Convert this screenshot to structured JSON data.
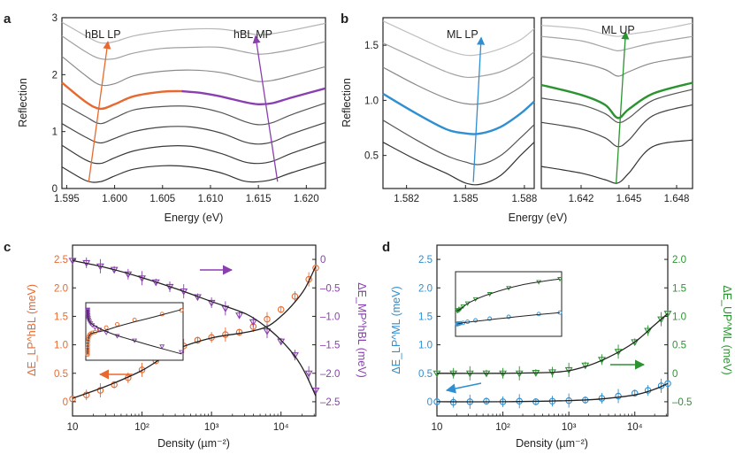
{
  "colors": {
    "orange": "#e8692f",
    "purple": "#8a3fb0",
    "blue": "#2f8fd0",
    "green": "#2b9330",
    "gray": "#9a9a9a",
    "dark": "#333333"
  },
  "panels": {
    "a": "a",
    "b": "b",
    "c": "c",
    "d": "d"
  },
  "chart_data": [
    {
      "panel": "a",
      "type": "line",
      "title": "",
      "xlabel": "Energy (eV)",
      "ylabel": "Reflection",
      "xlim": [
        1.5945,
        1.622
      ],
      "ylim": [
        0,
        3
      ],
      "xticks": [
        1.595,
        1.6,
        1.605,
        1.61,
        1.615,
        1.62
      ],
      "xtick_labels": [
        "1.595",
        "1.600",
        "1.605",
        "1.610",
        "1.615",
        "1.620"
      ],
      "yticks": [
        0,
        1,
        2,
        3
      ],
      "ytick_labels": [
        "0",
        "1",
        "2",
        "3"
      ],
      "annotations": [
        "hBL LP",
        "hBL MP"
      ],
      "series": [
        {
          "name": "trace 1",
          "x": [
            1.5945,
            1.597,
            1.5985,
            1.6,
            1.602,
            1.605,
            1.608,
            1.611,
            1.6135,
            1.615,
            1.6165,
            1.6185,
            1.622
          ],
          "values": [
            0.38,
            0.14,
            0.12,
            0.22,
            0.34,
            0.4,
            0.38,
            0.28,
            0.13,
            0.12,
            0.16,
            0.28,
            0.46
          ]
        },
        {
          "name": "trace 2",
          "x": [
            1.5945,
            1.597,
            1.5985,
            1.6,
            1.602,
            1.605,
            1.608,
            1.611,
            1.6135,
            1.615,
            1.6165,
            1.6185,
            1.622
          ],
          "values": [
            0.76,
            0.5,
            0.44,
            0.54,
            0.66,
            0.74,
            0.74,
            0.62,
            0.47,
            0.44,
            0.48,
            0.62,
            0.82
          ]
        },
        {
          "name": "trace 3",
          "x": [
            1.5945,
            1.597,
            1.5985,
            1.6,
            1.602,
            1.605,
            1.608,
            1.611,
            1.6135,
            1.615,
            1.6165,
            1.6185,
            1.622
          ],
          "values": [
            1.14,
            0.9,
            0.8,
            0.88,
            1.0,
            1.08,
            1.08,
            0.98,
            0.82,
            0.78,
            0.82,
            0.96,
            1.16
          ]
        },
        {
          "name": "trace 4",
          "x": [
            1.5945,
            1.597,
            1.5985,
            1.6,
            1.602,
            1.605,
            1.608,
            1.611,
            1.6135,
            1.615,
            1.6165,
            1.6185,
            1.622
          ],
          "values": [
            1.5,
            1.26,
            1.14,
            1.24,
            1.38,
            1.44,
            1.44,
            1.34,
            1.18,
            1.12,
            1.16,
            1.3,
            1.5
          ]
        },
        {
          "name": "trace 5 LP",
          "x": [
            1.5945,
            1.597,
            1.5985,
            1.6,
            1.602,
            1.605,
            1.607
          ],
          "values": [
            1.86,
            1.52,
            1.4,
            1.48,
            1.62,
            1.7,
            1.71
          ]
        },
        {
          "name": "trace 5 MP",
          "x": [
            1.607,
            1.609,
            1.611,
            1.6135,
            1.615,
            1.6165,
            1.6185,
            1.622
          ],
          "values": [
            1.71,
            1.68,
            1.62,
            1.52,
            1.48,
            1.5,
            1.6,
            1.76
          ]
        },
        {
          "name": "trace 6",
          "x": [
            1.5945,
            1.597,
            1.5985,
            1.6,
            1.602,
            1.605,
            1.608,
            1.611,
            1.6135,
            1.615,
            1.6165,
            1.6185,
            1.622
          ],
          "values": [
            2.32,
            1.98,
            1.82,
            1.84,
            1.98,
            2.06,
            2.08,
            2.04,
            1.94,
            1.88,
            1.9,
            1.98,
            2.14
          ]
        },
        {
          "name": "trace 7",
          "x": [
            1.5945,
            1.597,
            1.5985,
            1.6,
            1.602,
            1.605,
            1.608,
            1.611,
            1.6135,
            1.615,
            1.6165,
            1.6185,
            1.622
          ],
          "values": [
            2.68,
            2.4,
            2.28,
            2.28,
            2.38,
            2.46,
            2.48,
            2.48,
            2.4,
            2.36,
            2.38,
            2.44,
            2.58
          ]
        },
        {
          "name": "trace 8",
          "x": [
            1.5945,
            1.597,
            1.5985,
            1.6,
            1.602,
            1.605,
            1.608,
            1.611,
            1.6135,
            1.615,
            1.6165,
            1.6185,
            1.622
          ],
          "values": [
            2.92,
            2.68,
            2.56,
            2.58,
            2.68,
            2.76,
            2.8,
            2.8,
            2.74,
            2.7,
            2.72,
            2.78,
            2.9
          ]
        }
      ],
      "arrows": [
        {
          "name": "LP arrow",
          "from": [
            1.5973,
            0.12
          ],
          "to": [
            1.5993,
            2.58
          ]
        },
        {
          "name": "MP arrow",
          "from": [
            1.617,
            0.12
          ],
          "to": [
            1.6147,
            2.68
          ]
        }
      ]
    },
    {
      "panel": "b-left",
      "type": "line",
      "xlabel": "Energy (eV)",
      "ylabel": "Reflection",
      "xlim": [
        1.5808,
        1.5885
      ],
      "ylim": [
        0.2,
        1.75
      ],
      "xticks": [
        1.582,
        1.585,
        1.588
      ],
      "xtick_labels": [
        "1.582",
        "1.585",
        "1.588"
      ],
      "yticks": [
        0.5,
        1.0,
        1.5
      ],
      "ytick_labels": [
        "0.5",
        "1.0",
        "1.5"
      ],
      "annotations": [
        "ML LP"
      ],
      "series": [
        {
          "name": "trace 1",
          "x": [
            1.5808,
            1.5825,
            1.584,
            1.585,
            1.5858,
            1.5868,
            1.5878,
            1.5885
          ],
          "values": [
            0.62,
            0.46,
            0.34,
            0.25,
            0.24,
            0.32,
            0.5,
            0.62
          ]
        },
        {
          "name": "trace 2",
          "x": [
            1.5808,
            1.5825,
            1.584,
            1.585,
            1.5858,
            1.5868,
            1.5878,
            1.5885
          ],
          "values": [
            0.82,
            0.64,
            0.5,
            0.44,
            0.42,
            0.5,
            0.66,
            0.78
          ]
        },
        {
          "name": "trace 3 highlighted",
          "x": [
            1.5808,
            1.5825,
            1.584,
            1.585,
            1.5858,
            1.5868,
            1.5878,
            1.5885
          ],
          "values": [
            1.06,
            0.88,
            0.74,
            0.7,
            0.7,
            0.76,
            0.88,
            0.99
          ]
        },
        {
          "name": "trace 4",
          "x": [
            1.5808,
            1.5825,
            1.584,
            1.585,
            1.5858,
            1.5868,
            1.5878,
            1.5885
          ],
          "values": [
            1.3,
            1.14,
            1.02,
            0.97,
            0.97,
            1.02,
            1.12,
            1.22
          ]
        },
        {
          "name": "trace 5",
          "x": [
            1.5808,
            1.5825,
            1.584,
            1.585,
            1.5858,
            1.5868,
            1.5878,
            1.5885
          ],
          "values": [
            1.52,
            1.38,
            1.26,
            1.21,
            1.22,
            1.26,
            1.35,
            1.44
          ]
        },
        {
          "name": "trace 6",
          "x": [
            1.5808,
            1.5825,
            1.584,
            1.585,
            1.5858,
            1.5868,
            1.5878,
            1.5885
          ],
          "values": [
            1.72,
            1.58,
            1.46,
            1.41,
            1.42,
            1.47,
            1.55,
            1.65
          ]
        }
      ],
      "arrows": [
        {
          "name": "LP arrow",
          "from": [
            1.5854,
            0.26
          ],
          "to": [
            1.5858,
            1.57
          ]
        }
      ]
    },
    {
      "panel": "b-right",
      "type": "line",
      "xlabel": "Energy (eV)",
      "ylabel": "",
      "xlim": [
        1.6395,
        1.649
      ],
      "ylim": [
        0.2,
        1.75
      ],
      "xticks": [
        1.642,
        1.645,
        1.648
      ],
      "xtick_labels": [
        "1.642",
        "1.645",
        "1.648"
      ],
      "annotations": [
        "ML UP"
      ],
      "series": [
        {
          "name": "trace 1",
          "x": [
            1.6395,
            1.642,
            1.6435,
            1.6443,
            1.645,
            1.6465,
            1.649
          ],
          "values": [
            0.4,
            0.34,
            0.28,
            0.25,
            0.34,
            0.58,
            0.64
          ]
        },
        {
          "name": "trace 2",
          "x": [
            1.6395,
            1.642,
            1.6435,
            1.6443,
            1.645,
            1.6465,
            1.649
          ],
          "values": [
            0.8,
            0.74,
            0.66,
            0.58,
            0.64,
            0.86,
            0.96
          ]
        },
        {
          "name": "trace 3",
          "x": [
            1.6395,
            1.642,
            1.6435,
            1.6443,
            1.645,
            1.6465,
            1.649
          ],
          "values": [
            1.02,
            0.96,
            0.88,
            0.8,
            0.84,
            1.0,
            1.1
          ]
        },
        {
          "name": "trace 4 highlighted",
          "x": [
            1.6395,
            1.642,
            1.6435,
            1.6443,
            1.645,
            1.6465,
            1.649
          ],
          "values": [
            1.14,
            1.05,
            0.96,
            0.84,
            0.92,
            1.06,
            1.16
          ]
        },
        {
          "name": "trace 5",
          "x": [
            1.6395,
            1.642,
            1.6435,
            1.6443,
            1.645,
            1.6465,
            1.649
          ],
          "values": [
            1.4,
            1.34,
            1.28,
            1.22,
            1.26,
            1.34,
            1.4
          ]
        },
        {
          "name": "trace 6",
          "x": [
            1.6395,
            1.642,
            1.6435,
            1.6443,
            1.645,
            1.6465,
            1.649
          ],
          "values": [
            1.58,
            1.54,
            1.48,
            1.45,
            1.47,
            1.52,
            1.58
          ]
        },
        {
          "name": "trace 7",
          "x": [
            1.6395,
            1.642,
            1.6435,
            1.6443,
            1.645,
            1.6465,
            1.649
          ],
          "values": [
            1.68,
            1.65,
            1.6,
            1.58,
            1.6,
            1.63,
            1.7
          ]
        }
      ],
      "arrows": [
        {
          "name": "UP arrow",
          "from": [
            1.6442,
            0.24
          ],
          "to": [
            1.6448,
            1.62
          ]
        }
      ]
    },
    {
      "panel": "c",
      "type": "scatter",
      "xlabel": "Density (µm⁻²)",
      "x_scale": "log",
      "xlim_log10": [
        1,
        4.5
      ],
      "xtick_labels": [
        "10",
        "10²",
        "10³",
        "10⁴"
      ],
      "ylabel_left": "ΔE_LP^hBL (meV)",
      "ylim_left": [
        -0.25,
        2.75
      ],
      "yticks_left": [
        0,
        0.5,
        1.0,
        1.5,
        2.0,
        2.5
      ],
      "ytick_labels_left": [
        "0",
        "0.5",
        "1.0",
        "1.5",
        "2.0",
        "2.5"
      ],
      "ylabel_right": "ΔE_MP^hBL (meV)",
      "ylim_right": [
        -2.75,
        0.25
      ],
      "yticks_right": [
        0,
        -0.5,
        -1.0,
        -1.5,
        -2.0,
        -2.5
      ],
      "ytick_labels_right": [
        "0",
        "–0.5",
        "–1.0",
        "–1.5",
        "–2.0",
        "–2.5"
      ],
      "series": [
        {
          "name": "LP (left axis)",
          "axis": "left",
          "log10_density": [
            1.0,
            1.2,
            1.4,
            1.6,
            1.8,
            2.0,
            2.2,
            2.4,
            2.6,
            2.8,
            3.0,
            3.2,
            3.4,
            3.6,
            3.8,
            4.0,
            4.2,
            4.4,
            4.5
          ],
          "values": [
            0.05,
            0.12,
            0.2,
            0.3,
            0.42,
            0.56,
            0.72,
            0.86,
            0.98,
            1.08,
            1.13,
            1.18,
            1.22,
            1.32,
            1.45,
            1.62,
            1.85,
            2.15,
            2.35
          ]
        },
        {
          "name": "MP (right axis)",
          "axis": "right",
          "log10_density": [
            1.0,
            1.2,
            1.4,
            1.6,
            1.8,
            2.0,
            2.2,
            2.4,
            2.6,
            2.8,
            3.0,
            3.2,
            3.4,
            3.6,
            3.8,
            4.0,
            4.2,
            4.4,
            4.5
          ],
          "values": [
            -0.02,
            -0.06,
            -0.12,
            -0.18,
            -0.26,
            -0.33,
            -0.4,
            -0.48,
            -0.56,
            -0.66,
            -0.76,
            -0.86,
            -0.98,
            -1.1,
            -1.26,
            -1.44,
            -1.68,
            -2.0,
            -2.3
          ]
        }
      ],
      "fit_left": {
        "log10_density": [
          1.0,
          1.5,
          2.0,
          2.5,
          3.0,
          3.5,
          3.8,
          4.0,
          4.2,
          4.35,
          4.5
        ],
        "values": [
          0.06,
          0.28,
          0.55,
          0.92,
          1.12,
          1.22,
          1.32,
          1.5,
          1.75,
          2.0,
          2.38
        ]
      },
      "fit_right": {
        "log10_density": [
          1.0,
          1.5,
          2.0,
          2.5,
          3.0,
          3.5,
          3.8,
          4.0,
          4.2,
          4.35,
          4.5
        ],
        "values": [
          -0.02,
          -0.15,
          -0.32,
          -0.52,
          -0.74,
          -0.96,
          -1.2,
          -1.42,
          -1.7,
          -2.0,
          -2.4
        ]
      }
    },
    {
      "panel": "d",
      "type": "scatter",
      "xlabel": "Density (µm⁻²)",
      "x_scale": "log",
      "xlim_log10": [
        1,
        4.5
      ],
      "xtick_labels": [
        "10",
        "10²",
        "10³",
        "10⁴"
      ],
      "ylabel_left": "ΔE_LP^ML (meV)",
      "ylim_left": [
        -0.25,
        2.75
      ],
      "yticks_left": [
        0,
        0.5,
        1.0,
        1.5,
        2.0,
        2.5
      ],
      "ytick_labels_left": [
        "0",
        "0.5",
        "1.0",
        "1.5",
        "2.0",
        "2.5"
      ],
      "ylabel_right": "ΔE_UP^ML (meV)",
      "ylim_right": [
        -0.75,
        2.25
      ],
      "yticks_right": [
        -0.5,
        0,
        0.5,
        1.0,
        1.5,
        2.0
      ],
      "ytick_labels_right": [
        "–0.5",
        "0",
        "0.5",
        "1.0",
        "1.5",
        "2.0"
      ],
      "series": [
        {
          "name": "LP (left axis)",
          "axis": "left",
          "log10_density": [
            1.0,
            1.25,
            1.5,
            1.75,
            2.0,
            2.25,
            2.5,
            2.75,
            3.0,
            3.25,
            3.5,
            3.75,
            4.0,
            4.2,
            4.4,
            4.5
          ],
          "values": [
            0.0,
            -0.01,
            0.0,
            0.01,
            0.0,
            0.01,
            0.0,
            0.01,
            0.02,
            0.03,
            0.06,
            0.1,
            0.15,
            0.2,
            0.28,
            0.32
          ]
        },
        {
          "name": "UP (right axis)",
          "axis": "right",
          "log10_density": [
            1.0,
            1.25,
            1.5,
            1.75,
            2.0,
            2.25,
            2.5,
            2.75,
            3.0,
            3.25,
            3.5,
            3.75,
            4.0,
            4.2,
            4.4,
            4.5
          ],
          "values": [
            0.0,
            0.0,
            0.0,
            0.0,
            0.0,
            0.0,
            0.01,
            0.02,
            0.06,
            0.14,
            0.24,
            0.38,
            0.55,
            0.75,
            0.95,
            1.05
          ]
        }
      ],
      "fit_left": {
        "log10_density": [
          1.0,
          2.0,
          3.0,
          3.5,
          4.0,
          4.3,
          4.5
        ],
        "values": [
          0.0,
          0.0,
          0.02,
          0.05,
          0.12,
          0.22,
          0.32
        ]
      },
      "fit_right": {
        "log10_density": [
          1.0,
          2.0,
          2.8,
          3.2,
          3.6,
          4.0,
          4.3,
          4.5
        ],
        "values": [
          0.0,
          0.0,
          0.02,
          0.1,
          0.28,
          0.55,
          0.85,
          1.05
        ]
      }
    }
  ]
}
